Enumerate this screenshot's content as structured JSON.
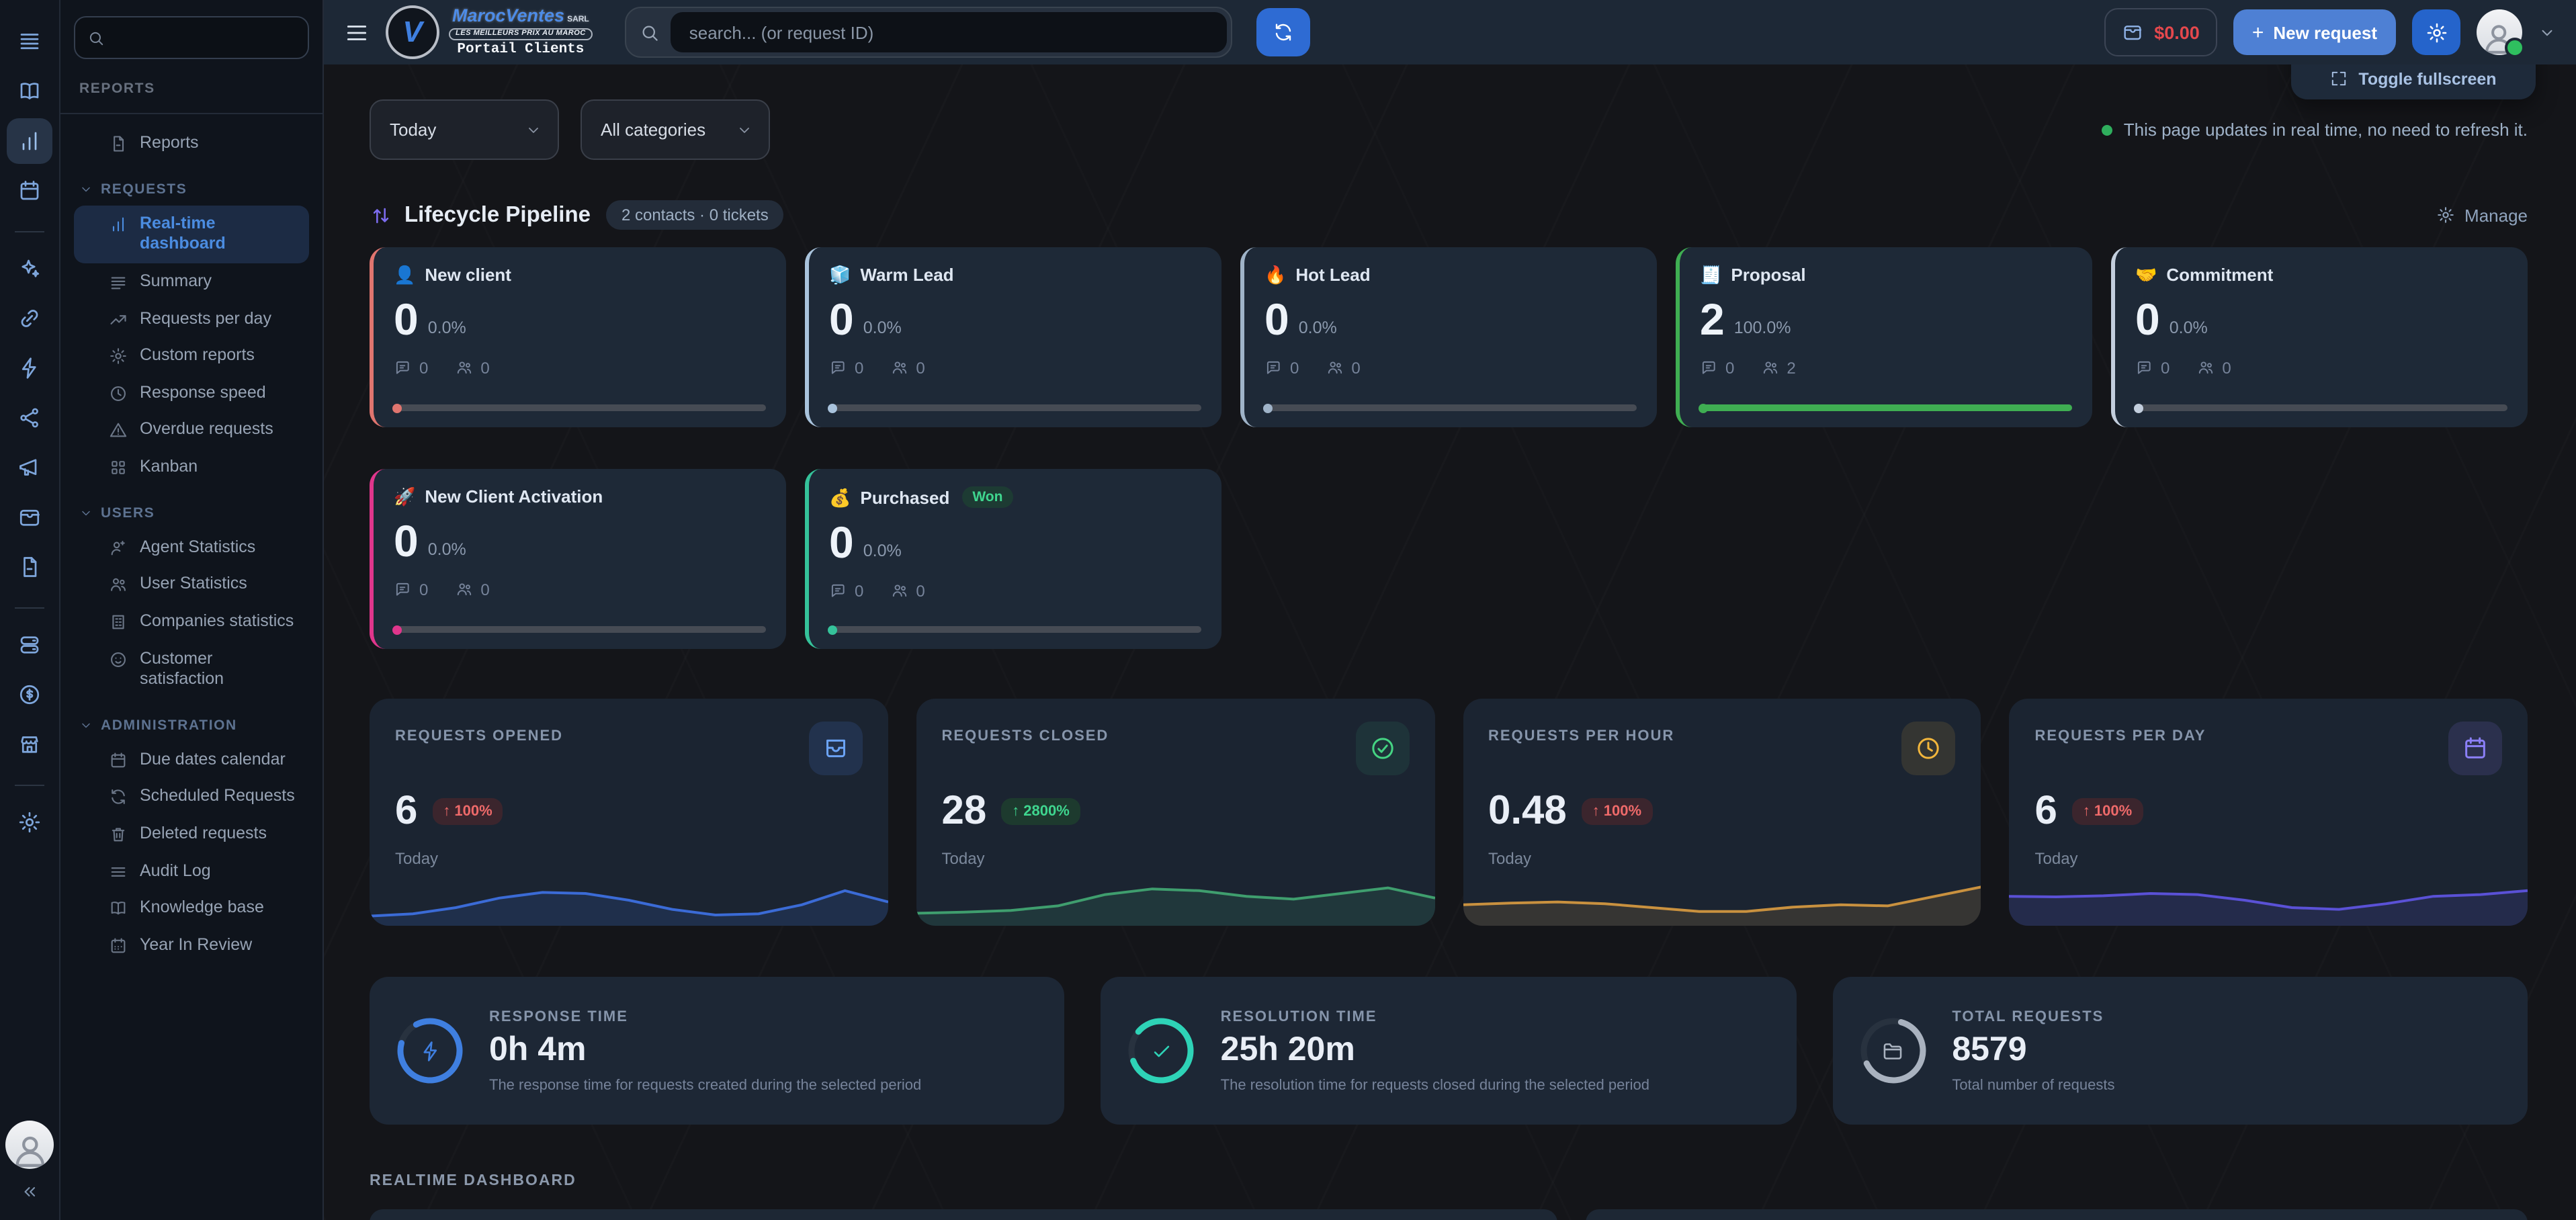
{
  "topbar": {
    "logo": {
      "name": "MarocVentes",
      "suffix": "SARL",
      "tagline": "LES MEILLEURS PRIX AU MAROC",
      "portal": "Portail Clients",
      "mark": "V"
    },
    "search_placeholder": "search... (or request ID)",
    "balance": "$0.00",
    "new_request": {
      "plus": "+",
      "label": "New request"
    },
    "fullscreen_tooltip": "Toggle fullscreen"
  },
  "filters": {
    "period": "Today",
    "category": "All categories"
  },
  "note": {
    "text": "This page updates in real time, no need to refresh it."
  },
  "sidebar": {
    "sections": [
      {
        "label": "REPORTS",
        "items": [
          {
            "label": "Reports"
          }
        ]
      },
      {
        "label": "REQUESTS",
        "items": [
          {
            "label": "Real-time dashboard",
            "active": true
          },
          {
            "label": "Summary"
          },
          {
            "label": "Requests per day"
          },
          {
            "label": "Custom reports"
          },
          {
            "label": "Response speed"
          },
          {
            "label": "Overdue requests"
          },
          {
            "label": "Kanban"
          }
        ]
      },
      {
        "label": "USERS",
        "items": [
          {
            "label": "Agent Statistics"
          },
          {
            "label": "User Statistics"
          },
          {
            "label": "Companies statistics"
          },
          {
            "label": "Customer satisfaction"
          }
        ]
      },
      {
        "label": "ADMINISTRATION",
        "items": [
          {
            "label": "Due dates calendar"
          },
          {
            "label": "Scheduled Requests"
          },
          {
            "label": "Deleted requests"
          },
          {
            "label": "Audit Log"
          },
          {
            "label": "Knowledge base"
          },
          {
            "label": "Year In Review"
          }
        ]
      }
    ]
  },
  "pipeline": {
    "title": "Lifecycle Pipeline",
    "badge": "2 contacts · 0 tickets",
    "manage": "Manage",
    "stages": [
      {
        "emoji": "👤",
        "name": "New client",
        "count": "0",
        "percent": "0.0%",
        "comments": "0",
        "people": "0",
        "color": "#e0756f"
      },
      {
        "emoji": "🧊",
        "name": "Warm Lead",
        "count": "0",
        "percent": "0.0%",
        "comments": "0",
        "people": "0",
        "color": "#a9c3dc"
      },
      {
        "emoji": "🔥",
        "name": "Hot Lead",
        "count": "0",
        "percent": "0.0%",
        "comments": "0",
        "people": "0",
        "color": "#9fb3c8"
      },
      {
        "emoji": "🧾",
        "name": "Proposal",
        "count": "2",
        "percent": "100.0%",
        "comments": "0",
        "people": "2",
        "color": "#3fae52"
      },
      {
        "emoji": "🤝",
        "name": "Commitment",
        "count": "0",
        "percent": "0.0%",
        "comments": "0",
        "people": "0",
        "color": "#c3cedd"
      },
      {
        "emoji": "🚀",
        "name": "New Client Activation",
        "count": "0",
        "percent": "0.0%",
        "comments": "0",
        "people": "0",
        "color": "#e0368c"
      },
      {
        "emoji": "💰",
        "name": "Purchased",
        "tag": "Won",
        "count": "0",
        "percent": "0.0%",
        "comments": "0",
        "people": "0",
        "color": "#35c29a"
      }
    ]
  },
  "stats": [
    {
      "title": "REQUESTS OPENED",
      "value": "6",
      "arrow": "↑",
      "change": "100%",
      "sentiment": "neg",
      "period": "Today",
      "accent": "#6ba3f5",
      "spark_color": "#3b6bd6",
      "spark": [
        0.1,
        0.14,
        0.25,
        0.42,
        0.52,
        0.5,
        0.38,
        0.22,
        0.12,
        0.14,
        0.3,
        0.55,
        0.35
      ]
    },
    {
      "title": "REQUESTS CLOSED",
      "value": "28",
      "arrow": "↑",
      "change": "2800%",
      "sentiment": "pos",
      "period": "Today",
      "accent": "#45d483",
      "spark_color": "#3f9e6e",
      "spark": [
        0.15,
        0.17,
        0.2,
        0.28,
        0.48,
        0.58,
        0.55,
        0.45,
        0.4,
        0.5,
        0.6,
        0.42
      ]
    },
    {
      "title": "REQUESTS PER HOUR",
      "value": "0.48",
      "arrow": "↑",
      "change": "100%",
      "sentiment": "neg",
      "period": "Today",
      "accent": "#f2b63c",
      "spark_color": "#c9913f",
      "spark": [
        0.3,
        0.33,
        0.35,
        0.32,
        0.25,
        0.18,
        0.18,
        0.26,
        0.3,
        0.28,
        0.45,
        0.62
      ]
    },
    {
      "title": "REQUESTS PER DAY",
      "value": "6",
      "arrow": "↑",
      "change": "100%",
      "sentiment": "neg",
      "period": "Today",
      "accent": "#8b7ff7",
      "spark_color": "#5a51d6",
      "spark": [
        0.45,
        0.44,
        0.46,
        0.5,
        0.48,
        0.38,
        0.25,
        0.22,
        0.32,
        0.45,
        0.48,
        0.55
      ]
    }
  ],
  "kpis": [
    {
      "title": "RESPONSE TIME",
      "value": "0h 4m",
      "desc": "The response time for requests created during the selected period",
      "accent": "#3f7fe0"
    },
    {
      "title": "RESOLUTION TIME",
      "value": "25h 20m",
      "desc": "The resolution time for requests closed during the selected period",
      "accent": "#2ed3b7"
    },
    {
      "title": "TOTAL REQUESTS",
      "value": "8579",
      "desc": "Total number of requests",
      "accent": "#a9b2bf"
    }
  ],
  "sections": {
    "realtime": "REALTIME DASHBOARD"
  }
}
